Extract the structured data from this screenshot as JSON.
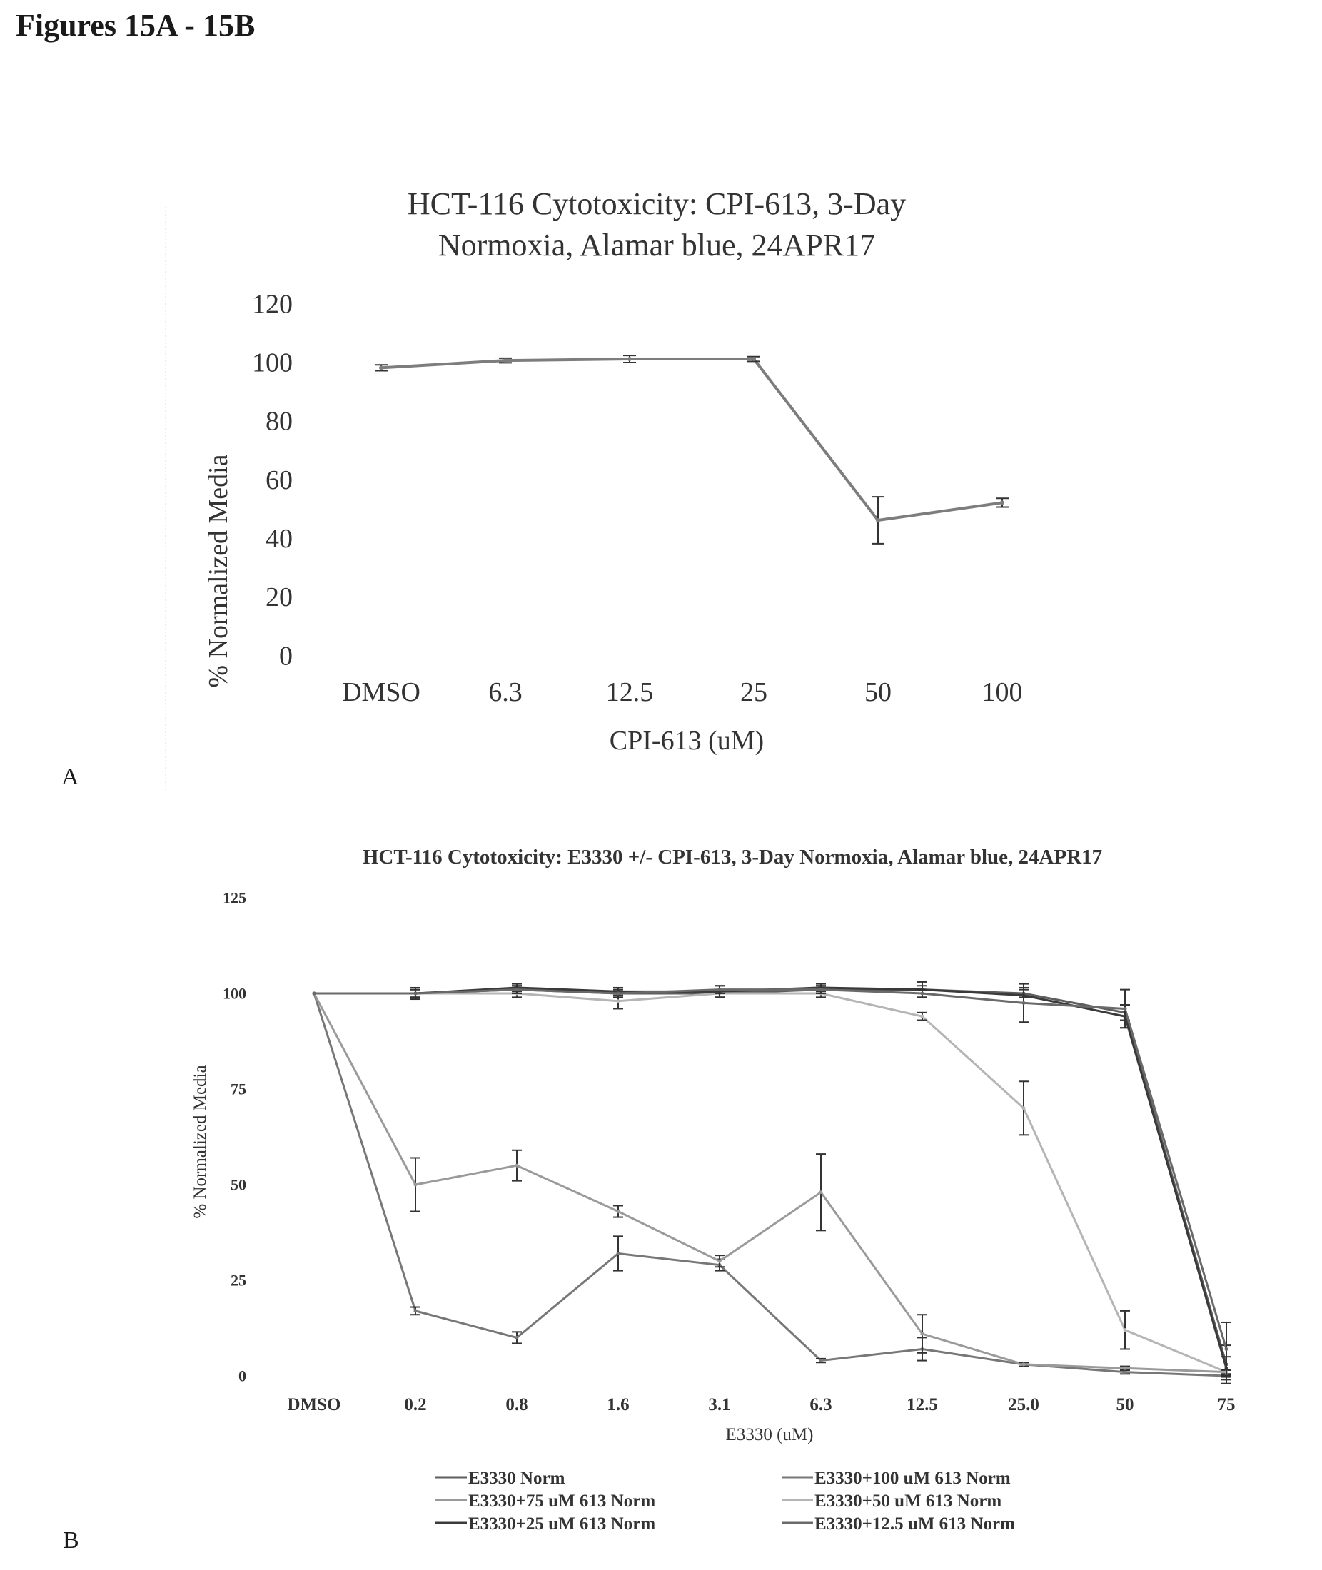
{
  "page": {
    "figure_title": "Figures 15A - 15B",
    "panel_a_letter": "A",
    "panel_b_letter": "B"
  },
  "chart_data": [
    {
      "type": "line",
      "title": "HCT-116 Cytotoxicity:  CPI-613, 3-Day",
      "subtitle": "Normoxia, Alamar blue, 24APR17",
      "xlabel": "CPI-613 (uM)",
      "ylabel": "% Normalized Media",
      "categories": [
        "DMSO",
        "6.3",
        "12.5",
        "25",
        "50",
        "100"
      ],
      "ylim": [
        0,
        120
      ],
      "yticks": [
        0,
        20,
        40,
        60,
        80,
        100,
        120
      ],
      "grid": false,
      "color": "#7d7d7d",
      "series": [
        {
          "values": [
            98,
            100.5,
            101,
            101,
            46,
            52
          ],
          "errors": [
            1,
            0.8,
            1.2,
            0.8,
            8,
            1.5
          ]
        }
      ]
    },
    {
      "type": "line",
      "title": "HCT-116 Cytotoxicity: E3330 +/- CPI-613, 3-Day Normoxia, Alamar blue, 24APR17",
      "xlabel": "E3330 (uM)",
      "ylabel": "% Normalized Media",
      "categories": [
        "DMSO",
        "0.2",
        "0.8",
        "1.6",
        "3.1",
        "6.3",
        "12.5",
        "25.0",
        "50",
        "75"
      ],
      "ylim": [
        0,
        125
      ],
      "yticks": [
        0,
        25,
        50,
        75,
        100,
        125
      ],
      "grid": false,
      "legend_position": "bottom",
      "series": [
        {
          "name": "E3330 Norm",
          "color": "#5e5e5e",
          "values": [
            100,
            100,
            101,
            100,
            100,
            101,
            101,
            100,
            95,
            3
          ],
          "errors": [
            0,
            1,
            1,
            1,
            1,
            1,
            1,
            1,
            2,
            5
          ]
        },
        {
          "name": "E3330+100 uM 613 Norm",
          "color": "#777777",
          "values": [
            100,
            17,
            10,
            32,
            29,
            4,
            7,
            3,
            1,
            0
          ],
          "errors": [
            0,
            1,
            1.5,
            4.5,
            1.5,
            0.5,
            3,
            0.5,
            0.5,
            0.3
          ]
        },
        {
          "name": "E3330+75 uM 613 Norm",
          "color": "#9a9a9a",
          "values": [
            100,
            50,
            55,
            43,
            30,
            48,
            11,
            3,
            2,
            1
          ],
          "errors": [
            0,
            7,
            4,
            1.5,
            1.5,
            10,
            5,
            0.5,
            0.5,
            0.5
          ]
        },
        {
          "name": "E3330+50 uM 613 Norm",
          "color": "#b5b5b5",
          "values": [
            100,
            100,
            100,
            98,
            100,
            100,
            94,
            70,
            12,
            1
          ],
          "errors": [
            0,
            1,
            1,
            2,
            1,
            1,
            1,
            7,
            5,
            0.5
          ]
        },
        {
          "name": "E3330+25 uM 613 Norm",
          "color": "#3a3a3a",
          "values": [
            100,
            100,
            101.5,
            100.5,
            100.5,
            101.5,
            101,
            99.5,
            94,
            2
          ],
          "errors": [
            0,
            1.5,
            1,
            1,
            1.5,
            1,
            2,
            2,
            3,
            3
          ]
        },
        {
          "name": "E3330+12.5 uM 613 Norm",
          "color": "#6a6a6a",
          "values": [
            100,
            100,
            101,
            100,
            101,
            101,
            100,
            97.5,
            96,
            7
          ],
          "errors": [
            0,
            1,
            1,
            1,
            1,
            1,
            1,
            5,
            5,
            7
          ]
        }
      ]
    }
  ]
}
